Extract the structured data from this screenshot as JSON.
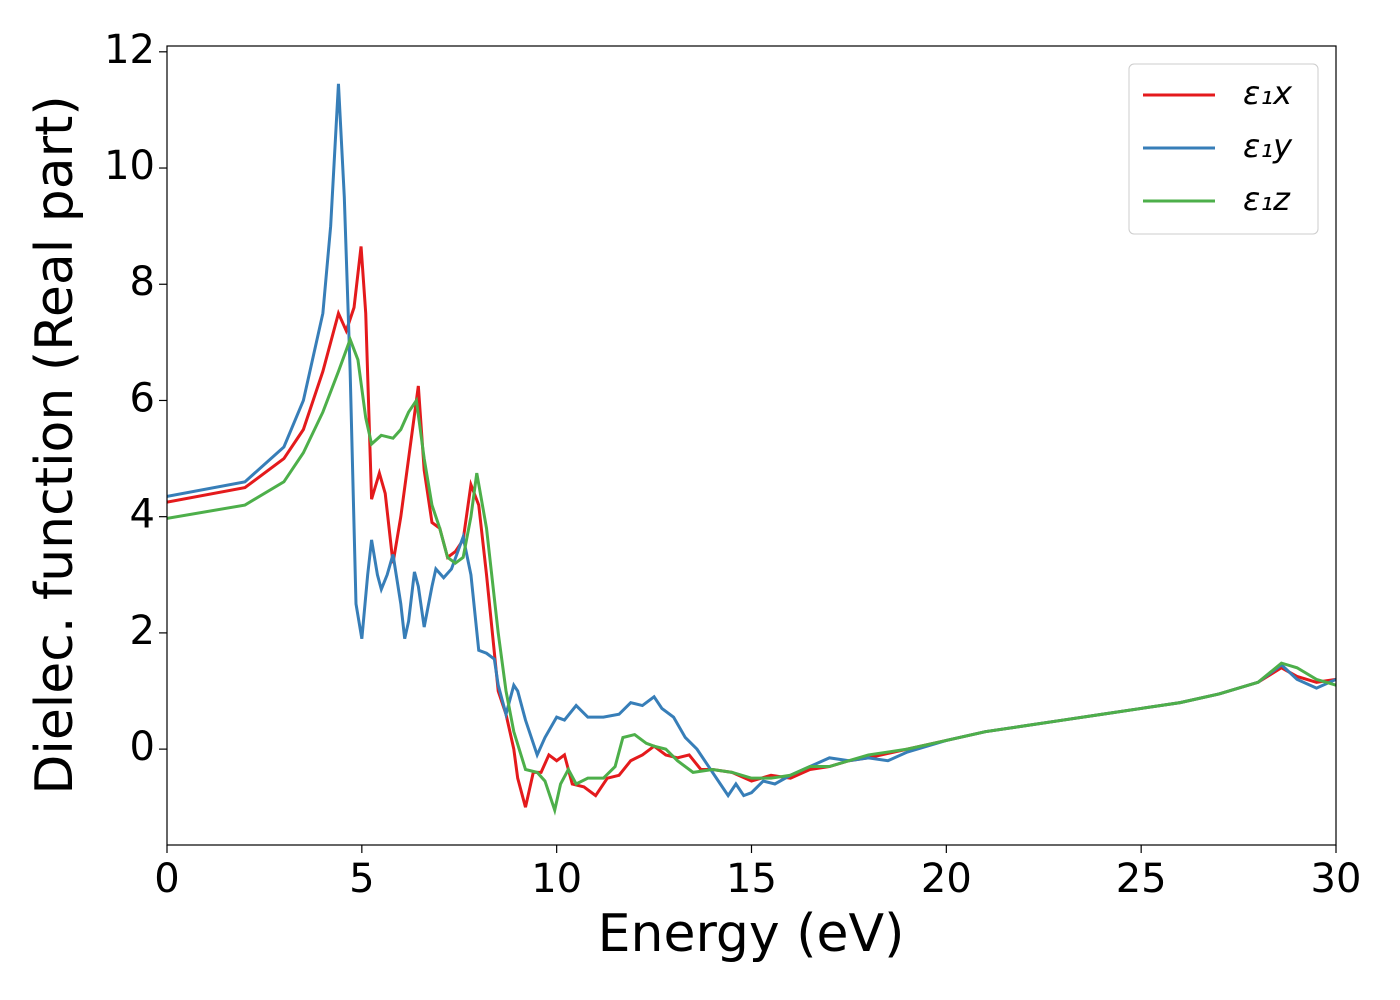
{
  "chart_data": {
    "type": "line",
    "xlabel": "Energy (eV)",
    "ylabel": "Dielec. function (Real part)",
    "xlim": [
      0,
      30
    ],
    "ylim": [
      -1.65,
      12.1
    ],
    "xticks": [
      0,
      5,
      10,
      15,
      20,
      25,
      30
    ],
    "yticks": [
      0,
      2,
      4,
      6,
      8,
      10,
      12
    ],
    "legend": "upper right",
    "series": [
      {
        "name": "ε₁x",
        "color": "#e41a1c",
        "x": [
          0,
          2,
          3,
          3.5,
          4,
          4.4,
          4.6,
          4.8,
          4.98,
          5.1,
          5.25,
          5.45,
          5.6,
          5.8,
          6.0,
          6.2,
          6.45,
          6.6,
          6.8,
          7.0,
          7.2,
          7.4,
          7.6,
          7.8,
          8.0,
          8.2,
          8.5,
          8.7,
          8.9,
          9.0,
          9.2,
          9.4,
          9.6,
          9.8,
          10.0,
          10.2,
          10.4,
          10.7,
          11.0,
          11.3,
          11.6,
          11.9,
          12.2,
          12.5,
          12.8,
          13.1,
          13.4,
          13.7,
          14.0,
          14.5,
          15.0,
          15.5,
          16.0,
          16.5,
          17,
          17.5,
          18,
          19,
          20,
          21,
          22,
          23,
          24,
          25,
          26,
          27,
          28,
          28.6,
          29,
          29.5,
          30
        ],
        "values": [
          4.25,
          4.5,
          5.0,
          5.5,
          6.5,
          7.5,
          7.2,
          7.6,
          8.65,
          7.5,
          4.3,
          4.75,
          4.4,
          3.2,
          4.0,
          5.0,
          6.25,
          4.8,
          3.9,
          3.8,
          3.3,
          3.4,
          3.6,
          4.55,
          4.2,
          3.0,
          1.0,
          0.6,
          0.0,
          -0.5,
          -1.0,
          -0.4,
          -0.4,
          -0.1,
          -0.2,
          -0.1,
          -0.6,
          -0.65,
          -0.8,
          -0.5,
          -0.45,
          -0.2,
          -0.1,
          0.05,
          -0.1,
          -0.15,
          -0.1,
          -0.35,
          -0.35,
          -0.4,
          -0.55,
          -0.45,
          -0.5,
          -0.35,
          -0.3,
          -0.2,
          -0.15,
          0.0,
          0.15,
          0.3,
          0.4,
          0.5,
          0.6,
          0.7,
          0.8,
          0.95,
          1.15,
          1.4,
          1.25,
          1.15,
          1.2
        ]
      },
      {
        "name": "ε₁y",
        "color": "#377eb8",
        "x": [
          0,
          2,
          3,
          3.5,
          4.0,
          4.2,
          4.4,
          4.55,
          4.7,
          4.85,
          5.0,
          5.15,
          5.25,
          5.4,
          5.5,
          5.65,
          5.8,
          6.0,
          6.1,
          6.2,
          6.35,
          6.45,
          6.6,
          6.8,
          6.9,
          7.1,
          7.3,
          7.6,
          7.8,
          8.0,
          8.2,
          8.4,
          8.5,
          8.7,
          8.9,
          9.0,
          9.2,
          9.5,
          9.7,
          10.0,
          10.2,
          10.5,
          10.8,
          11.2,
          11.6,
          11.9,
          12.2,
          12.5,
          12.7,
          13.0,
          13.3,
          13.6,
          13.9,
          14.2,
          14.4,
          14.6,
          14.8,
          15.0,
          15.3,
          15.6,
          16,
          16.5,
          17,
          17.5,
          18,
          18.5,
          19,
          20,
          21,
          22,
          23,
          24,
          25,
          26,
          27,
          28,
          28.6,
          29,
          29.5,
          30
        ],
        "values": [
          4.35,
          4.6,
          5.2,
          6.0,
          7.5,
          9.0,
          11.45,
          9.5,
          6.5,
          2.5,
          1.9,
          3.0,
          3.6,
          3.0,
          2.75,
          3.0,
          3.35,
          2.5,
          1.9,
          2.2,
          3.05,
          2.8,
          2.1,
          2.8,
          3.1,
          2.95,
          3.1,
          3.65,
          3.0,
          1.7,
          1.65,
          1.55,
          1.1,
          0.6,
          1.1,
          1.0,
          0.5,
          -0.1,
          0.2,
          0.55,
          0.5,
          0.75,
          0.55,
          0.55,
          0.6,
          0.8,
          0.75,
          0.9,
          0.7,
          0.55,
          0.2,
          0.0,
          -0.3,
          -0.6,
          -0.8,
          -0.6,
          -0.8,
          -0.75,
          -0.55,
          -0.6,
          -0.45,
          -0.3,
          -0.15,
          -0.2,
          -0.15,
          -0.2,
          -0.05,
          0.15,
          0.3,
          0.4,
          0.5,
          0.6,
          0.7,
          0.8,
          0.95,
          1.15,
          1.45,
          1.2,
          1.05,
          1.2
        ]
      },
      {
        "name": "ε₁z",
        "color": "#4daf4a",
        "x": [
          0,
          2,
          3,
          3.5,
          4.0,
          4.4,
          4.7,
          4.9,
          5.1,
          5.25,
          5.5,
          5.8,
          6.0,
          6.2,
          6.4,
          6.6,
          6.8,
          7.0,
          7.2,
          7.4,
          7.6,
          7.8,
          7.95,
          8.2,
          8.5,
          8.7,
          8.9,
          9.2,
          9.5,
          9.7,
          9.95,
          10.1,
          10.3,
          10.5,
          10.8,
          11.2,
          11.5,
          11.7,
          12.0,
          12.3,
          12.5,
          12.8,
          13.1,
          13.5,
          14,
          14.5,
          15,
          15.5,
          16,
          16.5,
          17,
          17.5,
          18,
          19,
          20,
          21,
          22,
          23,
          24,
          25,
          26,
          27,
          28,
          28.6,
          29,
          29.5,
          30
        ],
        "values": [
          3.97,
          4.2,
          4.6,
          5.1,
          5.8,
          6.5,
          7.05,
          6.7,
          5.7,
          5.25,
          5.4,
          5.35,
          5.5,
          5.8,
          6.0,
          5.0,
          4.2,
          3.8,
          3.3,
          3.2,
          3.3,
          4.0,
          4.75,
          3.8,
          2.0,
          1.0,
          0.3,
          -0.35,
          -0.4,
          -0.55,
          -1.05,
          -0.6,
          -0.35,
          -0.6,
          -0.5,
          -0.5,
          -0.3,
          0.2,
          0.25,
          0.1,
          0.05,
          0.0,
          -0.2,
          -0.4,
          -0.35,
          -0.4,
          -0.5,
          -0.5,
          -0.45,
          -0.3,
          -0.3,
          -0.2,
          -0.1,
          0.0,
          0.15,
          0.3,
          0.4,
          0.5,
          0.6,
          0.7,
          0.8,
          0.95,
          1.15,
          1.48,
          1.4,
          1.2,
          1.1
        ]
      }
    ]
  }
}
